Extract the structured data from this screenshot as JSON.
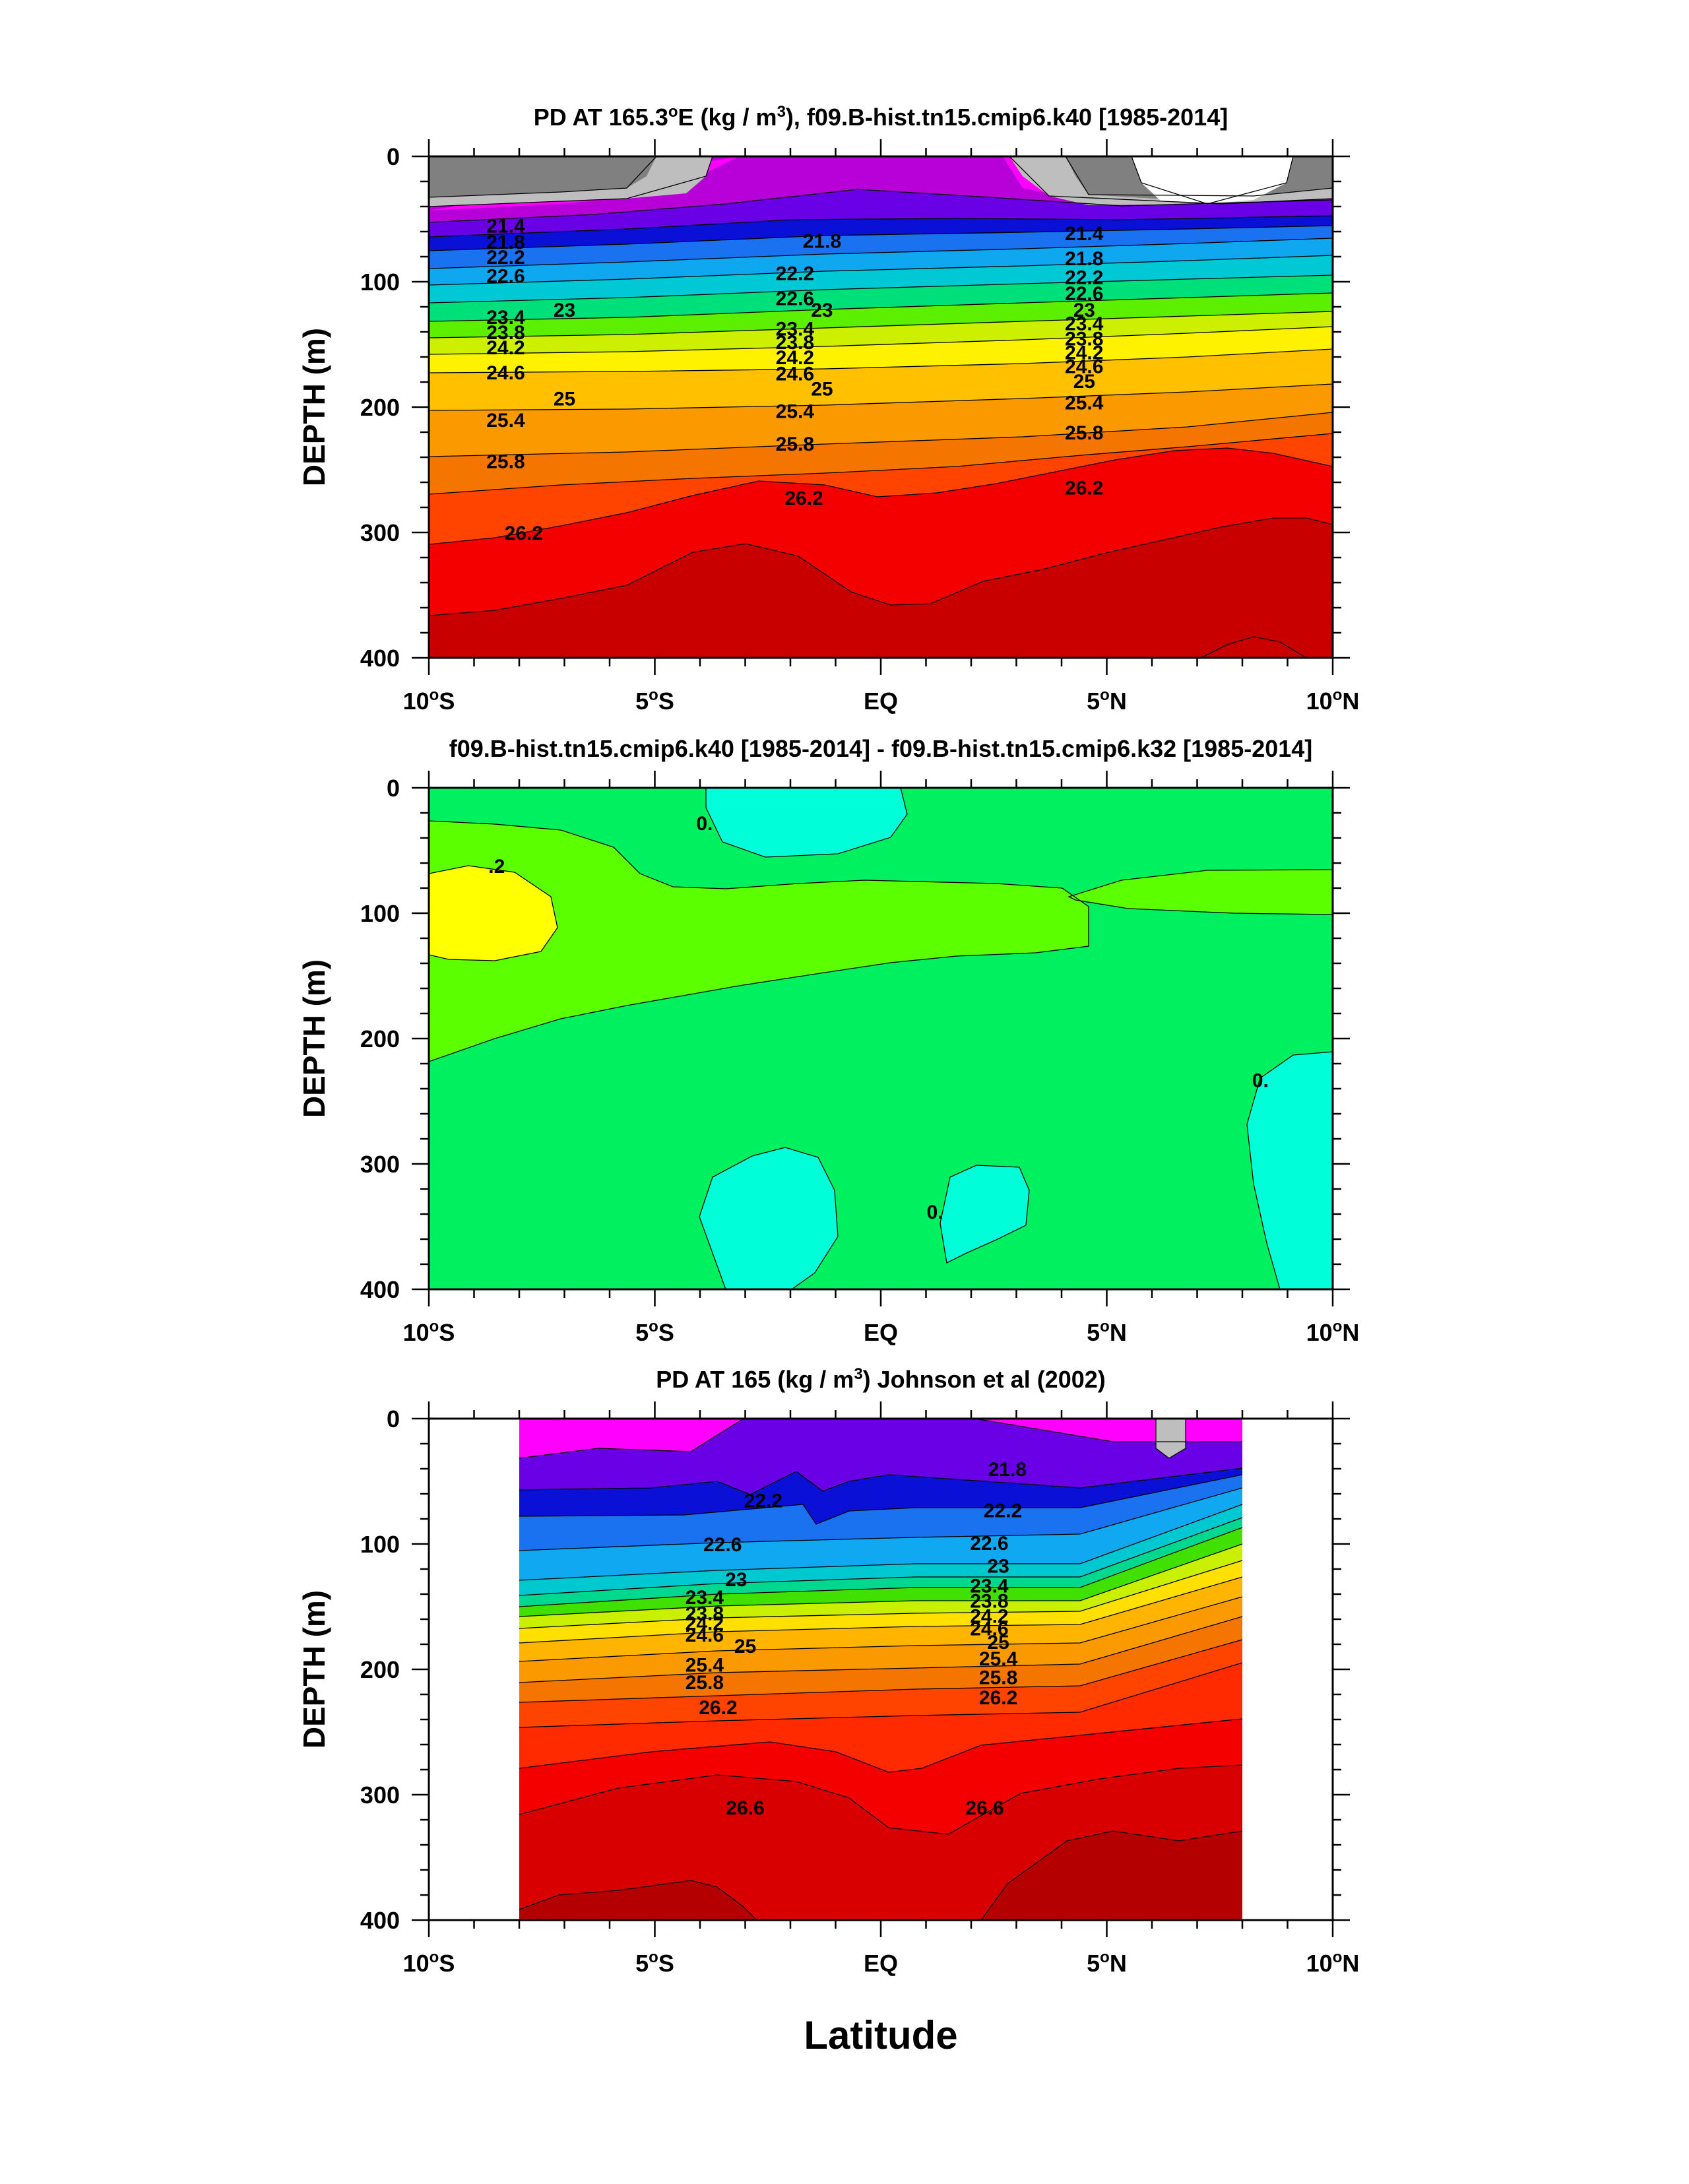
{
  "x_axis_label": "Latitude",
  "chart_data": [
    {
      "type": "contour",
      "title_parts": [
        "PD AT 165.3",
        "o",
        "E (kg / m",
        "3",
        "), f09.B-hist.tn15.cmip6.k40 [1985-2014]"
      ],
      "ylabel": "DEPTH (m)",
      "xlim": [
        -10,
        10
      ],
      "ylim": [
        400,
        0
      ],
      "yticks": [
        "0",
        "100",
        "200",
        "300",
        "400"
      ],
      "xticks": [
        {
          "value": -10,
          "num": "10",
          "deg": "o",
          "hem": "S"
        },
        {
          "value": -5,
          "num": "5",
          "deg": "o",
          "hem": "S"
        },
        {
          "value": 0,
          "num": "EQ",
          "deg": "",
          "hem": ""
        },
        {
          "value": 5,
          "num": "5",
          "deg": "o",
          "hem": "N"
        },
        {
          "value": 10,
          "num": "10",
          "deg": "o",
          "hem": "N"
        }
      ],
      "contour_labels": [
        {
          "text": "21.4",
          "lat": -8.3,
          "depth": 55
        },
        {
          "text": "21.8",
          "lat": -8.3,
          "depth": 68
        },
        {
          "text": "22.2",
          "lat": -8.3,
          "depth": 80
        },
        {
          "text": "22.6",
          "lat": -8.3,
          "depth": 95
        },
        {
          "text": "23",
          "lat": -7.0,
          "depth": 122
        },
        {
          "text": "23.4",
          "lat": -8.3,
          "depth": 128
        },
        {
          "text": "23.8",
          "lat": -8.3,
          "depth": 140
        },
        {
          "text": "24.2",
          "lat": -8.3,
          "depth": 152
        },
        {
          "text": "24.6",
          "lat": -8.3,
          "depth": 172
        },
        {
          "text": "25",
          "lat": -7.0,
          "depth": 193
        },
        {
          "text": "25.4",
          "lat": -8.3,
          "depth": 210
        },
        {
          "text": "25.8",
          "lat": -8.3,
          "depth": 243
        },
        {
          "text": "26.2",
          "lat": -7.9,
          "depth": 300
        },
        {
          "text": "21.8",
          "lat": -1.3,
          "depth": 67
        },
        {
          "text": "22.2",
          "lat": -1.9,
          "depth": 93
        },
        {
          "text": "22.6",
          "lat": -1.9,
          "depth": 113
        },
        {
          "text": "23",
          "lat": -1.3,
          "depth": 122
        },
        {
          "text": "23.4",
          "lat": -1.9,
          "depth": 137
        },
        {
          "text": "23.8",
          "lat": -1.9,
          "depth": 148
        },
        {
          "text": "24.2",
          "lat": -1.9,
          "depth": 160
        },
        {
          "text": "24.6",
          "lat": -1.9,
          "depth": 173
        },
        {
          "text": "25",
          "lat": -1.3,
          "depth": 185
        },
        {
          "text": "25.4",
          "lat": -1.9,
          "depth": 203
        },
        {
          "text": "25.8",
          "lat": -1.9,
          "depth": 229
        },
        {
          "text": "26.2",
          "lat": -1.7,
          "depth": 272
        },
        {
          "text": "21.4",
          "lat": 4.5,
          "depth": 61
        },
        {
          "text": "21.8",
          "lat": 4.5,
          "depth": 81
        },
        {
          "text": "22.2",
          "lat": 4.5,
          "depth": 96
        },
        {
          "text": "22.6",
          "lat": 4.5,
          "depth": 109
        },
        {
          "text": "23",
          "lat": 4.5,
          "depth": 122
        },
        {
          "text": "23.4",
          "lat": 4.5,
          "depth": 133
        },
        {
          "text": "23.8",
          "lat": 4.5,
          "depth": 145
        },
        {
          "text": "24.2",
          "lat": 4.5,
          "depth": 156
        },
        {
          "text": "24.6",
          "lat": 4.5,
          "depth": 167
        },
        {
          "text": "25",
          "lat": 4.5,
          "depth": 179
        },
        {
          "text": "25.4",
          "lat": 4.5,
          "depth": 196
        },
        {
          "text": "25.8",
          "lat": 4.5,
          "depth": 220
        },
        {
          "text": "26.2",
          "lat": 4.5,
          "depth": 264
        }
      ]
    },
    {
      "type": "contour",
      "title_parts": [
        "f09.B-hist.tn15.cmip6.k40 [1985-2014] - f09.B-hist.tn15.cmip6.k32 [1985-2014]"
      ],
      "ylabel": "DEPTH (m)",
      "xlim": [
        -10,
        10
      ],
      "ylim": [
        400,
        0
      ],
      "yticks": [
        "0",
        "100",
        "200",
        "300",
        "400"
      ],
      "xticks": [
        {
          "value": -10,
          "num": "10",
          "deg": "o",
          "hem": "S"
        },
        {
          "value": -5,
          "num": "5",
          "deg": "o",
          "hem": "S"
        },
        {
          "value": 0,
          "num": "EQ",
          "deg": "",
          "hem": ""
        },
        {
          "value": 5,
          "num": "5",
          "deg": "o",
          "hem": "N"
        },
        {
          "value": 10,
          "num": "10",
          "deg": "o",
          "hem": "N"
        }
      ],
      "contour_labels": [
        {
          "text": ".2",
          "lat": -8.5,
          "depth": 62
        },
        {
          "text": "0.",
          "lat": -3.9,
          "depth": 28
        },
        {
          "text": "0.",
          "lat": 8.4,
          "depth": 233
        },
        {
          "text": "0.",
          "lat": 1.2,
          "depth": 338
        }
      ]
    },
    {
      "type": "contour",
      "title_parts": [
        "PD AT 165 (kg / m",
        "3",
        ") Johnson et al (2002)"
      ],
      "ylabel": "DEPTH (m)",
      "xlim": [
        -10,
        10
      ],
      "ylim": [
        400,
        0
      ],
      "yticks": [
        "0",
        "100",
        "200",
        "300",
        "400"
      ],
      "xticks": [
        {
          "value": -10,
          "num": "10",
          "deg": "o",
          "hem": "S"
        },
        {
          "value": -5,
          "num": "5",
          "deg": "o",
          "hem": "S"
        },
        {
          "value": 0,
          "num": "EQ",
          "deg": "",
          "hem": ""
        },
        {
          "value": 5,
          "num": "5",
          "deg": "o",
          "hem": "N"
        },
        {
          "value": 10,
          "num": "10",
          "deg": "o",
          "hem": "N"
        }
      ],
      "data_lat_range": [
        -8,
        8
      ],
      "contour_labels": [
        {
          "text": "21.8",
          "lat": 2.8,
          "depth": 40
        },
        {
          "text": "22.2",
          "lat": -2.6,
          "depth": 65
        },
        {
          "text": "22.2",
          "lat": 2.7,
          "depth": 73
        },
        {
          "text": "22.6",
          "lat": -3.5,
          "depth": 100
        },
        {
          "text": "22.6",
          "lat": 2.4,
          "depth": 99
        },
        {
          "text": "23",
          "lat": -3.2,
          "depth": 128
        },
        {
          "text": "23",
          "lat": 2.6,
          "depth": 117
        },
        {
          "text": "23.4",
          "lat": -3.9,
          "depth": 142
        },
        {
          "text": "23.4",
          "lat": 2.4,
          "depth": 133
        },
        {
          "text": "23.8",
          "lat": -3.9,
          "depth": 155
        },
        {
          "text": "23.8",
          "lat": 2.4,
          "depth": 145
        },
        {
          "text": "24.2",
          "lat": -3.9,
          "depth": 163
        },
        {
          "text": "24.2",
          "lat": 2.4,
          "depth": 157
        },
        {
          "text": "24.6",
          "lat": -3.9,
          "depth": 172
        },
        {
          "text": "24.6",
          "lat": 2.4,
          "depth": 167
        },
        {
          "text": "25",
          "lat": -3.0,
          "depth": 181
        },
        {
          "text": "25",
          "lat": 2.6,
          "depth": 178
        },
        {
          "text": "25.4",
          "lat": -3.9,
          "depth": 196
        },
        {
          "text": "25.4",
          "lat": 2.6,
          "depth": 191
        },
        {
          "text": "25.8",
          "lat": -3.9,
          "depth": 210
        },
        {
          "text": "25.8",
          "lat": 2.6,
          "depth": 206
        },
        {
          "text": "26.2",
          "lat": -3.6,
          "depth": 230
        },
        {
          "text": "26.2",
          "lat": 2.6,
          "depth": 222
        },
        {
          "text": "26.6",
          "lat": -3.0,
          "depth": 310
        },
        {
          "text": "26.6",
          "lat": 2.3,
          "depth": 310
        }
      ]
    }
  ]
}
